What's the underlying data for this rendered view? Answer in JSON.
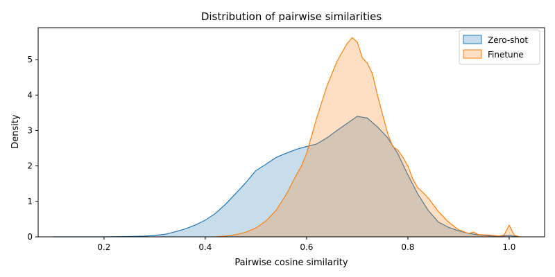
{
  "chart_data": {
    "type": "area",
    "title": "Distribution of pairwise similarities",
    "xlabel": "Pairwise cosine similarity",
    "ylabel": "Density",
    "xlim": [
      0.07,
      1.07
    ],
    "ylim": [
      0,
      5.9
    ],
    "xticks": [
      0.2,
      0.4,
      0.6,
      0.8,
      1.0
    ],
    "xtick_labels": [
      "0.2",
      "0.4",
      "0.6",
      "0.8",
      "1.0"
    ],
    "yticks": [
      0,
      1,
      2,
      3,
      4,
      5
    ],
    "ytick_labels": [
      "0",
      "1",
      "2",
      "3",
      "4",
      "5"
    ],
    "grid": false,
    "legend_position": "top-right",
    "series": [
      {
        "name": "Zero-shot",
        "color": "#1f77b4",
        "fill": "#1f77b4",
        "fill_opacity": 0.25,
        "x": [
          0.1,
          0.15,
          0.2,
          0.25,
          0.28,
          0.3,
          0.32,
          0.34,
          0.36,
          0.38,
          0.4,
          0.42,
          0.44,
          0.46,
          0.48,
          0.5,
          0.52,
          0.54,
          0.56,
          0.58,
          0.6,
          0.62,
          0.64,
          0.66,
          0.68,
          0.7,
          0.72,
          0.74,
          0.76,
          0.78,
          0.8,
          0.82,
          0.84,
          0.86,
          0.88,
          0.9,
          0.92,
          0.94,
          0.96,
          0.98,
          1.0,
          1.02
        ],
        "y": [
          0.0,
          0.0,
          0.0,
          0.01,
          0.02,
          0.04,
          0.07,
          0.14,
          0.22,
          0.33,
          0.47,
          0.66,
          0.92,
          1.22,
          1.53,
          1.87,
          2.05,
          2.24,
          2.36,
          2.47,
          2.55,
          2.62,
          2.79,
          3.0,
          3.2,
          3.4,
          3.35,
          3.1,
          2.8,
          2.35,
          1.75,
          1.2,
          0.75,
          0.42,
          0.27,
          0.17,
          0.1,
          0.05,
          0.03,
          0.02,
          0.04,
          0.0
        ]
      },
      {
        "name": "Finetune",
        "color": "#ff7f0e",
        "fill": "#ff7f0e",
        "fill_opacity": 0.25,
        "x": [
          0.42,
          0.44,
          0.46,
          0.48,
          0.5,
          0.52,
          0.54,
          0.56,
          0.58,
          0.59,
          0.6,
          0.62,
          0.64,
          0.66,
          0.68,
          0.69,
          0.7,
          0.71,
          0.72,
          0.73,
          0.74,
          0.75,
          0.76,
          0.77,
          0.78,
          0.79,
          0.8,
          0.81,
          0.82,
          0.83,
          0.84,
          0.86,
          0.88,
          0.9,
          0.92,
          0.93,
          0.94,
          0.96,
          0.98,
          0.99,
          1.0,
          1.01,
          1.02
        ],
        "y": [
          0.0,
          0.02,
          0.06,
          0.13,
          0.25,
          0.45,
          0.75,
          1.2,
          1.75,
          2.0,
          2.35,
          3.35,
          4.25,
          4.95,
          5.45,
          5.62,
          5.5,
          5.05,
          4.9,
          4.6,
          4.0,
          3.45,
          2.92,
          2.55,
          2.45,
          2.25,
          2.0,
          1.62,
          1.38,
          1.25,
          1.1,
          0.72,
          0.42,
          0.2,
          0.1,
          0.13,
          0.06,
          0.05,
          0.02,
          0.05,
          0.33,
          0.05,
          0.0
        ]
      }
    ]
  }
}
